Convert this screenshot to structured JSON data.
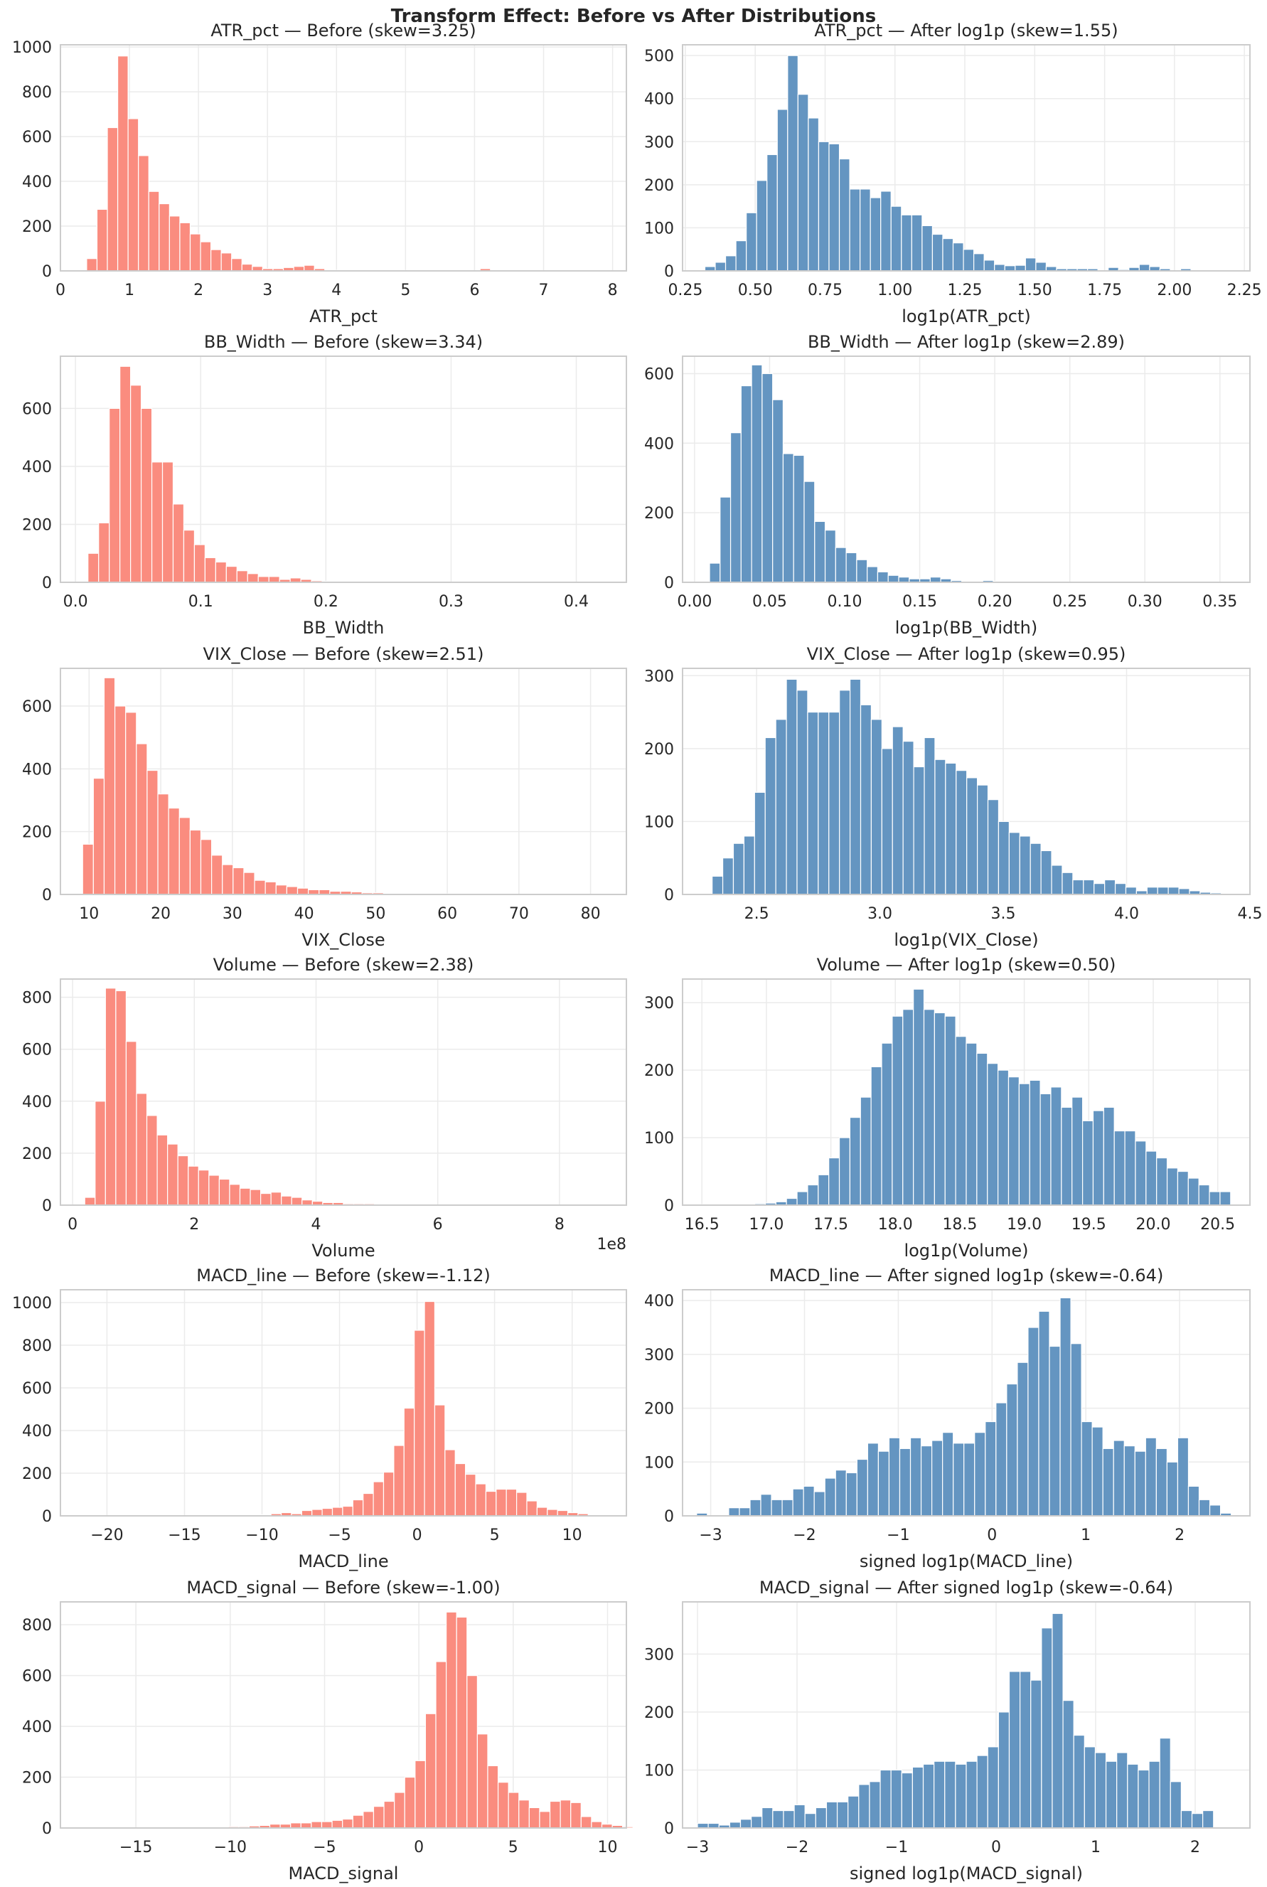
{
  "title": "Transform Effect: Before vs After Distributions",
  "colors": {
    "before": "#fa8c7f",
    "after": "#6495c1",
    "grid": "#ebebeb",
    "spine": "#cccccc"
  },
  "chart_data": [
    {
      "type": "bar",
      "title": "ATR_pct  —  Before  (skew=3.25)",
      "xlabel": "ATR_pct",
      "ylabel": "",
      "series_color": "before",
      "xlim": [
        0,
        8.2
      ],
      "ylim": [
        0,
        1010
      ],
      "xticks": [
        0,
        1,
        2,
        3,
        4,
        5,
        6,
        7,
        8
      ],
      "xtick_labels": [
        "0",
        "1",
        "2",
        "3",
        "4",
        "5",
        "6",
        "7",
        "8"
      ],
      "yticks": [
        0,
        200,
        400,
        600,
        800,
        1000
      ],
      "bin_start": 0.38,
      "bin_width": 0.15,
      "counts": [
        55,
        275,
        640,
        960,
        680,
        515,
        355,
        300,
        245,
        215,
        165,
        130,
        95,
        80,
        55,
        30,
        20,
        10,
        10,
        15,
        20,
        25,
        10,
        3,
        3,
        2,
        3,
        2,
        1,
        1,
        2,
        1,
        1,
        1,
        1,
        1,
        1,
        1,
        10,
        1,
        1,
        1,
        1,
        1,
        0,
        1,
        0,
        0,
        0,
        0
      ]
    },
    {
      "type": "bar",
      "title": "ATR_pct  —  After log1p  (skew=1.55)",
      "xlabel": "log1p(ATR_pct)",
      "ylabel": "",
      "series_color": "after",
      "xlim": [
        0.24,
        2.27
      ],
      "ylim": [
        0,
        525
      ],
      "xticks": [
        0.25,
        0.5,
        0.75,
        1.0,
        1.25,
        1.5,
        1.75,
        2.0,
        2.25
      ],
      "xtick_labels": [
        "0.25",
        "0.50",
        "0.75",
        "1.00",
        "1.25",
        "1.50",
        "1.75",
        "2.00",
        "2.25"
      ],
      "yticks": [
        0,
        100,
        200,
        300,
        400,
        500
      ],
      "bin_start": 0.32,
      "bin_width": 0.037,
      "counts": [
        10,
        20,
        35,
        70,
        135,
        210,
        270,
        375,
        500,
        410,
        355,
        300,
        295,
        260,
        190,
        190,
        170,
        185,
        150,
        130,
        130,
        105,
        85,
        75,
        65,
        50,
        40,
        25,
        15,
        12,
        13,
        30,
        20,
        10,
        5,
        5,
        5,
        5,
        0,
        8,
        3,
        8,
        15,
        10,
        5,
        0,
        5,
        0,
        0,
        0
      ]
    },
    {
      "type": "bar",
      "title": "BB_Width  —  Before  (skew=3.34)",
      "xlabel": "BB_Width",
      "ylabel": "",
      "series_color": "before",
      "xlim": [
        -0.012,
        0.44
      ],
      "ylim": [
        0,
        780
      ],
      "xticks": [
        0,
        0.1,
        0.2,
        0.3,
        0.4
      ],
      "xtick_labels": [
        "0.0",
        "0.1",
        "0.2",
        "0.3",
        "0.4"
      ],
      "yticks": [
        0,
        200,
        400,
        600
      ],
      "bin_start": 0.01,
      "bin_width": 0.0085,
      "counts": [
        100,
        205,
        600,
        745,
        680,
        600,
        415,
        415,
        270,
        180,
        130,
        85,
        70,
        55,
        40,
        30,
        20,
        20,
        10,
        15,
        10,
        5,
        3,
        2,
        2,
        1,
        2,
        1,
        1,
        1,
        1,
        1,
        1,
        0,
        0,
        0,
        0,
        0,
        0,
        0,
        0,
        0,
        0,
        0,
        0,
        0,
        0,
        0,
        0,
        1
      ]
    },
    {
      "type": "bar",
      "title": "BB_Width  —  After log1p  (skew=2.89)",
      "xlabel": "log1p(BB_Width)",
      "ylabel": "",
      "series_color": "after",
      "xlim": [
        -0.008,
        0.37
      ],
      "ylim": [
        0,
        650
      ],
      "xticks": [
        0,
        0.05,
        0.1,
        0.15,
        0.2,
        0.25,
        0.3,
        0.35
      ],
      "xtick_labels": [
        "0.00",
        "0.05",
        "0.10",
        "0.15",
        "0.20",
        "0.25",
        "0.30",
        "0.35"
      ],
      "yticks": [
        0,
        200,
        400,
        600
      ],
      "bin_start": 0.01,
      "bin_width": 0.007,
      "counts": [
        55,
        245,
        430,
        565,
        625,
        600,
        525,
        370,
        365,
        290,
        175,
        150,
        100,
        85,
        65,
        45,
        30,
        20,
        15,
        10,
        10,
        15,
        10,
        5,
        3,
        3,
        5,
        3,
        2,
        2,
        1,
        1,
        1,
        1,
        0,
        1,
        0,
        0,
        0,
        0,
        0,
        0,
        0,
        0,
        0,
        0,
        0,
        0,
        0,
        1
      ]
    },
    {
      "type": "bar",
      "title": "VIX_Close  —  Before  (skew=2.51)",
      "xlabel": "VIX_Close",
      "ylabel": "",
      "series_color": "before",
      "xlim": [
        6,
        85
      ],
      "ylim": [
        0,
        720
      ],
      "xticks": [
        10,
        20,
        30,
        40,
        50,
        60,
        70,
        80
      ],
      "xtick_labels": [
        "10",
        "20",
        "30",
        "40",
        "50",
        "60",
        "70",
        "80"
      ],
      "yticks": [
        0,
        200,
        400,
        600
      ],
      "bin_start": 9.1,
      "bin_width": 1.5,
      "counts": [
        160,
        370,
        690,
        600,
        580,
        480,
        395,
        320,
        275,
        245,
        205,
        175,
        125,
        95,
        85,
        70,
        45,
        40,
        30,
        25,
        20,
        15,
        15,
        10,
        10,
        8,
        5,
        5,
        3,
        2,
        1,
        1,
        3,
        2,
        1,
        1,
        0,
        0,
        0,
        0,
        0,
        0,
        0,
        0,
        0,
        0,
        0,
        0,
        0,
        1
      ]
    },
    {
      "type": "bar",
      "title": "VIX_Close  —  After log1p  (skew=0.95)",
      "xlabel": "log1p(VIX_Close)",
      "ylabel": "",
      "series_color": "after",
      "xlim": [
        2.2,
        4.5
      ],
      "ylim": [
        0,
        310
      ],
      "xticks": [
        2.5,
        3.0,
        3.5,
        4.0,
        4.5
      ],
      "xtick_labels": [
        "2.5",
        "3.0",
        "3.5",
        "4.0",
        "4.5"
      ],
      "yticks": [
        0,
        100,
        200,
        300
      ],
      "bin_start": 2.32,
      "bin_width": 0.043,
      "counts": [
        25,
        50,
        70,
        80,
        140,
        215,
        240,
        295,
        280,
        250,
        250,
        250,
        280,
        295,
        260,
        240,
        200,
        230,
        210,
        175,
        215,
        185,
        180,
        170,
        160,
        150,
        130,
        100,
        85,
        80,
        70,
        60,
        40,
        30,
        20,
        20,
        15,
        20,
        15,
        10,
        5,
        10,
        10,
        10,
        8,
        5,
        3,
        2,
        1,
        1
      ]
    },
    {
      "type": "bar",
      "title": "Volume  —  Before  (skew=2.38)",
      "xlabel": "Volume",
      "x_offset_label": "1e8",
      "ylabel": "",
      "series_color": "before",
      "xlim": [
        -0.2,
        9.1
      ],
      "ylim": [
        0,
        870
      ],
      "xticks": [
        0,
        2,
        4,
        6,
        8
      ],
      "xtick_labels": [
        "0",
        "2",
        "4",
        "6",
        "8"
      ],
      "yticks": [
        0,
        200,
        400,
        600,
        800
      ],
      "bin_start": 0.2,
      "bin_width": 0.17,
      "counts": [
        30,
        400,
        835,
        825,
        630,
        430,
        345,
        270,
        235,
        190,
        150,
        135,
        115,
        100,
        80,
        65,
        60,
        45,
        50,
        35,
        30,
        20,
        15,
        10,
        10,
        5,
        5,
        5,
        3,
        2,
        2,
        1,
        1,
        1,
        1,
        1,
        0,
        0,
        0,
        0,
        0,
        0,
        0,
        0,
        0,
        0,
        0,
        0,
        0,
        1
      ]
    },
    {
      "type": "bar",
      "title": "Volume  —  After log1p  (skew=0.50)",
      "xlabel": "log1p(Volume)",
      "ylabel": "",
      "series_color": "after",
      "xlim": [
        16.35,
        20.75
      ],
      "ylim": [
        0,
        335
      ],
      "xticks": [
        16.5,
        17.0,
        17.5,
        18.0,
        18.5,
        19.0,
        19.5,
        20.0,
        20.5
      ],
      "xtick_labels": [
        "16.5",
        "17.0",
        "17.5",
        "18.0",
        "18.5",
        "19.0",
        "19.5",
        "20.0",
        "20.5"
      ],
      "yticks": [
        0,
        100,
        200,
        300
      ],
      "bin_start": 16.5,
      "bin_width": 0.082,
      "counts": [
        1,
        1,
        1,
        1,
        1,
        2,
        3,
        5,
        10,
        20,
        30,
        45,
        70,
        100,
        130,
        160,
        205,
        240,
        280,
        290,
        320,
        290,
        285,
        280,
        250,
        240,
        225,
        210,
        200,
        190,
        180,
        185,
        165,
        175,
        145,
        160,
        125,
        140,
        145,
        110,
        110,
        95,
        80,
        70,
        55,
        50,
        40,
        30,
        20,
        20
      ]
    },
    {
      "type": "bar",
      "title": "MACD_line  —  Before  (skew=-1.12)",
      "xlabel": "MACD_line",
      "ylabel": "",
      "series_color": "before",
      "xlim": [
        -23,
        13.5
      ],
      "ylim": [
        0,
        1060
      ],
      "xticks": [
        -20,
        -15,
        -10,
        -5,
        0,
        5,
        10
      ],
      "xtick_labels": [
        "−20",
        "−15",
        "−10",
        "−5",
        "0",
        "5",
        "10"
      ],
      "yticks": [
        0,
        200,
        400,
        600,
        800,
        1000
      ],
      "bin_start": -21.3,
      "bin_width": 0.66,
      "counts": [
        1,
        0,
        0,
        0,
        0,
        0,
        1,
        0,
        0,
        1,
        0,
        1,
        0,
        1,
        1,
        1,
        1,
        5,
        10,
        15,
        10,
        25,
        30,
        35,
        40,
        45,
        75,
        105,
        160,
        205,
        330,
        505,
        870,
        1005,
        520,
        310,
        245,
        195,
        150,
        115,
        125,
        125,
        110,
        70,
        40,
        30,
        25,
        15,
        10,
        5
      ]
    },
    {
      "type": "bar",
      "title": "MACD_line  —  After signed log1p  (skew=-0.64)",
      "xlabel": "signed log1p(MACD_line)",
      "ylabel": "",
      "series_color": "after",
      "xlim": [
        -3.3,
        2.75
      ],
      "ylim": [
        0,
        420
      ],
      "xticks": [
        -3,
        -2,
        -1,
        0,
        1,
        2
      ],
      "xtick_labels": [
        "−3",
        "−2",
        "−1",
        "0",
        "1",
        "2"
      ],
      "yticks": [
        0,
        100,
        200,
        300,
        400
      ],
      "bin_start": -3.15,
      "bin_width": 0.114,
      "counts": [
        5,
        0,
        0,
        15,
        15,
        30,
        40,
        30,
        30,
        50,
        55,
        45,
        70,
        85,
        80,
        105,
        135,
        120,
        145,
        125,
        145,
        130,
        140,
        155,
        135,
        135,
        155,
        175,
        210,
        245,
        285,
        350,
        380,
        315,
        405,
        320,
        175,
        165,
        125,
        140,
        130,
        120,
        145,
        125,
        100,
        145,
        55,
        30,
        20,
        5
      ]
    },
    {
      "type": "bar",
      "title": "MACD_signal  —  Before  (skew=-1.00)",
      "xlabel": "MACD_signal",
      "ylabel": "",
      "series_color": "before",
      "xlim": [
        -19,
        11
      ],
      "ylim": [
        0,
        890
      ],
      "xticks": [
        -15,
        -10,
        -5,
        0,
        5,
        10
      ],
      "xtick_labels": [
        "−15",
        "−10",
        "−5",
        "0",
        "5",
        "10"
      ],
      "yticks": [
        0,
        200,
        400,
        600,
        800
      ],
      "bin_start": -17.8,
      "bin_width": 0.55,
      "counts": [
        1,
        1,
        0,
        1,
        0,
        1,
        1,
        0,
        1,
        1,
        1,
        0,
        1,
        1,
        5,
        5,
        8,
        10,
        15,
        15,
        20,
        20,
        25,
        25,
        30,
        35,
        50,
        65,
        85,
        105,
        140,
        200,
        265,
        450,
        655,
        850,
        830,
        600,
        370,
        245,
        180,
        140,
        110,
        80,
        65,
        105,
        110,
        100,
        45,
        25,
        15,
        10,
        5
      ]
    },
    {
      "type": "bar",
      "title": "MACD_signal  —  After signed log1p  (skew=-0.64)",
      "xlabel": "signed log1p(MACD_signal)",
      "ylabel": "",
      "series_color": "after",
      "xlim": [
        -3.15,
        2.55
      ],
      "ylim": [
        0,
        390
      ],
      "xticks": [
        -3,
        -2,
        -1,
        0,
        1,
        2
      ],
      "xtick_labels": [
        "−3",
        "−2",
        "−1",
        "0",
        "1",
        "2"
      ],
      "yticks": [
        0,
        100,
        200,
        300
      ],
      "bin_start": -3.0,
      "bin_width": 0.108,
      "counts": [
        8,
        8,
        5,
        10,
        15,
        20,
        35,
        30,
        30,
        40,
        25,
        35,
        45,
        45,
        55,
        75,
        80,
        100,
        100,
        95,
        105,
        110,
        115,
        115,
        110,
        115,
        125,
        140,
        200,
        270,
        270,
        255,
        345,
        370,
        220,
        160,
        140,
        130,
        115,
        130,
        110,
        100,
        115,
        155,
        80,
        30,
        25,
        30
      ]
    }
  ]
}
